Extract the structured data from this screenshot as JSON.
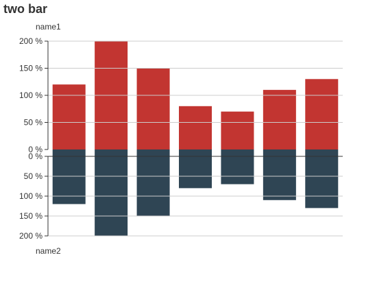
{
  "chart_data": {
    "type": "bar",
    "title": "two bar",
    "categories": [
      "",
      "",
      "",
      "",
      "",
      "",
      ""
    ],
    "series": [
      {
        "name": "name1",
        "values": [
          120,
          200,
          150,
          80,
          70,
          110,
          130
        ],
        "color": "#c23531",
        "direction": "up"
      },
      {
        "name": "name2",
        "values": [
          120,
          200,
          150,
          80,
          70,
          110,
          130
        ],
        "color": "#2f4554",
        "direction": "down"
      }
    ],
    "top_axis": {
      "name": "name1",
      "ticks": [
        0,
        50,
        100,
        150,
        200
      ],
      "tick_labels": [
        "0 %",
        "50 %",
        "100 %",
        "150 %",
        "200 %"
      ],
      "ylim": [
        0,
        200
      ]
    },
    "bottom_axis": {
      "name": "name2",
      "ticks": [
        0,
        50,
        100,
        150,
        200
      ],
      "tick_labels": [
        "0 %",
        "50 %",
        "100 %",
        "150 %",
        "200 %"
      ],
      "ylim": [
        0,
        200
      ],
      "inverse": true
    },
    "grid": true,
    "grid_color": "#cccccc",
    "axis_color": "#333333"
  }
}
